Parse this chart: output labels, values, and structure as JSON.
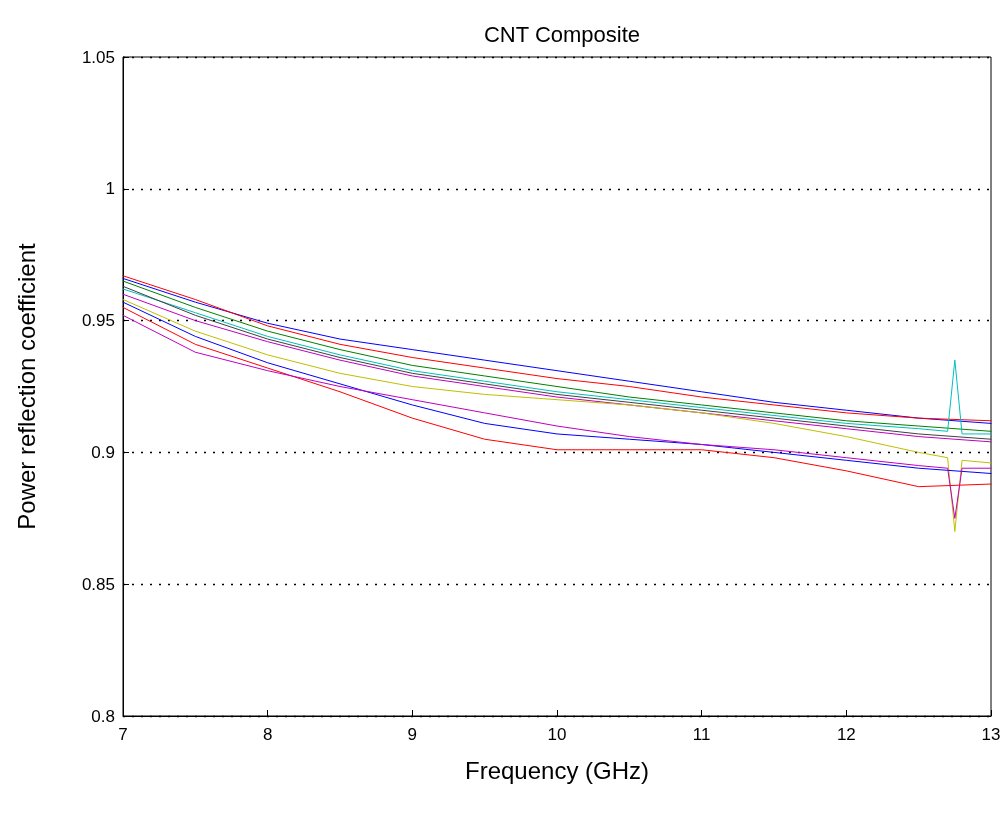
{
  "chart_data": {
    "type": "line",
    "title": "CNT Composite",
    "xlabel": "Frequency (GHz)",
    "ylabel": "Power reflection coefficient",
    "x": [
      7,
      7.5,
      8,
      8.5,
      9,
      9.5,
      10,
      10.5,
      11,
      11.5,
      12,
      12.5,
      13
    ],
    "xlim": [
      7,
      13
    ],
    "xticks": [
      7,
      8,
      9,
      10,
      11,
      12,
      13
    ],
    "ylim": [
      0.8,
      1.05
    ],
    "yticks": [
      0.8,
      0.85,
      0.9,
      0.95,
      1,
      1.05
    ],
    "grid": "y",
    "line_style": "solid",
    "marker": "none",
    "series": [
      {
        "color": "#0000ff",
        "values": [
          0.966,
          0.957,
          0.949,
          0.943,
          0.939,
          0.935,
          0.931,
          0.927,
          0.923,
          0.919,
          0.916,
          0.913,
          0.911
        ]
      },
      {
        "color": "#ff0000",
        "values": [
          0.967,
          0.958,
          0.948,
          0.941,
          0.936,
          0.932,
          0.928,
          0.925,
          0.921,
          0.918,
          0.915,
          0.913,
          0.912
        ]
      },
      {
        "color": "#008000",
        "values": [
          0.965,
          0.955,
          0.946,
          0.939,
          0.933,
          0.929,
          0.925,
          0.921,
          0.918,
          0.915,
          0.912,
          0.91,
          0.908
        ]
      },
      {
        "color": "#00bfbf",
        "x": [
          7,
          7.5,
          8,
          8.5,
          9,
          9.5,
          10,
          10.5,
          11,
          11.5,
          12,
          12.5,
          12.7,
          12.75,
          12.8,
          13
        ],
        "values": [
          0.962,
          0.953,
          0.944,
          0.937,
          0.931,
          0.927,
          0.923,
          0.92,
          0.917,
          0.914,
          0.911,
          0.909,
          0.908,
          0.935,
          0.907,
          0.907
        ]
      },
      {
        "color": "#bf00bf",
        "values": [
          0.96,
          0.95,
          0.942,
          0.935,
          0.929,
          0.925,
          0.921,
          0.918,
          0.915,
          0.912,
          0.909,
          0.906,
          0.904
        ]
      },
      {
        "color": "#404040",
        "values": [
          0.963,
          0.952,
          0.943,
          0.936,
          0.93,
          0.926,
          0.922,
          0.919,
          0.916,
          0.913,
          0.91,
          0.907,
          0.905
        ]
      },
      {
        "color": "#bfbf00",
        "x": [
          7,
          7.5,
          8,
          8.5,
          9,
          9.5,
          10,
          10.5,
          11,
          11.5,
          12,
          12.5,
          12.7,
          12.75,
          12.8,
          13
        ],
        "values": [
          0.958,
          0.946,
          0.937,
          0.93,
          0.925,
          0.922,
          0.92,
          0.918,
          0.915,
          0.911,
          0.906,
          0.9,
          0.898,
          0.87,
          0.897,
          0.896
        ]
      },
      {
        "color": "#0000ff",
        "values": [
          0.957,
          0.944,
          0.934,
          0.926,
          0.918,
          0.911,
          0.907,
          0.905,
          0.903,
          0.9,
          0.897,
          0.894,
          0.892
        ]
      },
      {
        "color": "#ff0000",
        "values": [
          0.955,
          0.941,
          0.932,
          0.923,
          0.913,
          0.905,
          0.901,
          0.901,
          0.901,
          0.898,
          0.893,
          0.887,
          0.888
        ]
      },
      {
        "color": "#bf00bf",
        "x": [
          7,
          7.5,
          8,
          8.5,
          9,
          9.5,
          10,
          10.5,
          11,
          11.5,
          12,
          12.5,
          12.7,
          12.75,
          12.8,
          13
        ],
        "values": [
          0.952,
          0.938,
          0.931,
          0.925,
          0.92,
          0.915,
          0.91,
          0.906,
          0.903,
          0.901,
          0.898,
          0.895,
          0.894,
          0.875,
          0.894,
          0.894
        ]
      }
    ]
  }
}
